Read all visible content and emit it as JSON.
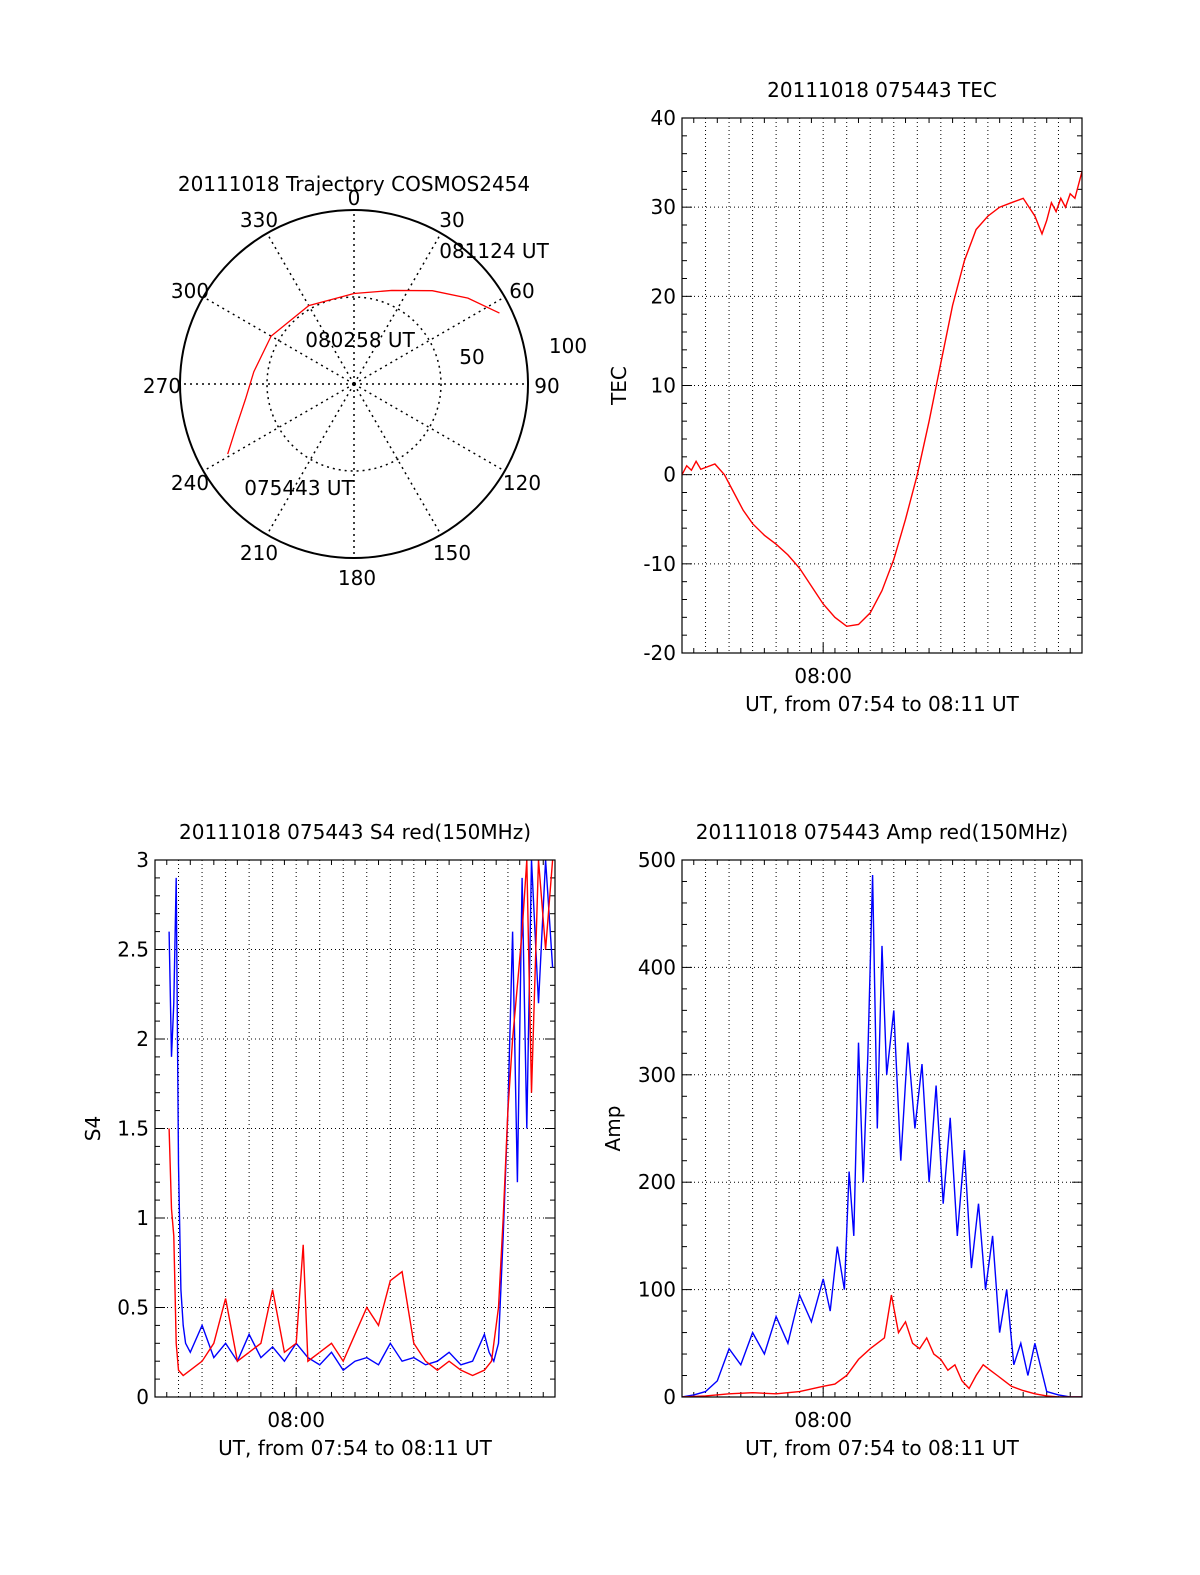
{
  "chart_data": [
    {
      "type": "polar",
      "title": "20111018 Trajectory COSMOS2454",
      "azimuth_labels": [
        "0",
        "30",
        "60",
        "90",
        "120",
        "150",
        "180",
        "210",
        "240",
        "270",
        "300",
        "330"
      ],
      "azimuths": [
        0,
        30,
        60,
        90,
        120,
        150,
        180,
        210,
        240,
        270,
        300,
        330
      ],
      "elevation_rings": [
        {
          "value": 50,
          "label": "50"
        },
        {
          "value": 100,
          "label": "100"
        }
      ],
      "time_labels": [
        {
          "text": "081124 UT",
          "az": 64,
          "r": 0.93
        },
        {
          "text": "080258 UT",
          "az": 0,
          "r": 0.0
        },
        {
          "text": "075443 UT",
          "az": 236,
          "r": 0.83
        }
      ],
      "trajectory": [
        [
          64,
          0.93
        ],
        [
          53,
          0.82
        ],
        [
          40,
          0.7
        ],
        [
          22,
          0.58
        ],
        [
          0,
          0.52
        ],
        [
          330,
          0.52
        ],
        [
          300,
          0.55
        ],
        [
          277,
          0.58
        ],
        [
          262,
          0.63
        ],
        [
          250,
          0.72
        ],
        [
          241,
          0.83
        ]
      ],
      "line_color": "#ff0000"
    },
    {
      "type": "line",
      "title": "20111018 075443 TEC",
      "ylabel": "TEC",
      "xlabel": "UT, from 07:54 to 08:11 UT",
      "xtick_label": "08:00",
      "xrange": [
        0,
        17
      ],
      "xtick_at": 6,
      "yrange": [
        -20,
        40
      ],
      "yticks": [
        -20,
        -10,
        0,
        10,
        20,
        30,
        40
      ],
      "series": [
        {
          "color": "#ff0000",
          "x": [
            0.0,
            0.2,
            0.4,
            0.6,
            0.8,
            1.0,
            1.4,
            1.8,
            2.2,
            2.6,
            3.0,
            3.5,
            4.0,
            4.5,
            5.0,
            5.5,
            6.0,
            6.5,
            7.0,
            7.5,
            8.0,
            8.5,
            9.0,
            9.5,
            10.0,
            10.5,
            11.0,
            11.5,
            12.0,
            12.5,
            13.0,
            13.5,
            14.0,
            14.5,
            15.0,
            15.3,
            15.5,
            15.7,
            15.9,
            16.1,
            16.3,
            16.5,
            16.7,
            17.0
          ],
          "y": [
            0.0,
            1.0,
            0.5,
            1.5,
            0.6,
            0.8,
            1.2,
            0.0,
            -2.0,
            -4.0,
            -5.5,
            -6.8,
            -7.8,
            -9.0,
            -10.5,
            -12.5,
            -14.5,
            -16.0,
            -17.0,
            -16.8,
            -15.5,
            -13.0,
            -9.5,
            -5.0,
            0.0,
            6.0,
            12.5,
            19.0,
            24.0,
            27.5,
            29.0,
            30.0,
            30.5,
            31.0,
            29.0,
            27.0,
            28.5,
            30.5,
            29.5,
            31.0,
            30.0,
            31.5,
            31.0,
            34.0
          ]
        }
      ]
    },
    {
      "type": "line",
      "title": "20111018 075443 S4 red(150MHz)",
      "ylabel": "S4",
      "xlabel": "UT, from 07:54 to 08:11 UT",
      "xtick_label": "08:00",
      "xrange": [
        0,
        17
      ],
      "xtick_at": 6,
      "yrange": [
        0,
        3
      ],
      "yticks": [
        0,
        0.5,
        1,
        1.5,
        2,
        2.5,
        3
      ],
      "series": [
        {
          "color": "#0000ff",
          "x": [
            0.6,
            0.7,
            0.8,
            0.9,
            1.0,
            1.1,
            1.2,
            1.3,
            1.5,
            2.0,
            2.5,
            3.0,
            3.5,
            4.0,
            4.5,
            5.0,
            5.5,
            6.0,
            6.5,
            7.0,
            7.5,
            8.0,
            8.5,
            9.0,
            9.5,
            10.0,
            10.5,
            11.0,
            11.5,
            12.0,
            12.5,
            13.0,
            13.5,
            14.0,
            14.2,
            14.4,
            14.6,
            14.8,
            15.0,
            15.2,
            15.4,
            15.6,
            15.8,
            16.0,
            16.3,
            16.6,
            16.9
          ],
          "y": [
            2.6,
            1.9,
            2.2,
            2.9,
            1.3,
            0.6,
            0.4,
            0.3,
            0.25,
            0.4,
            0.22,
            0.3,
            0.2,
            0.35,
            0.22,
            0.28,
            0.2,
            0.3,
            0.22,
            0.18,
            0.25,
            0.15,
            0.2,
            0.22,
            0.18,
            0.3,
            0.2,
            0.22,
            0.18,
            0.2,
            0.25,
            0.18,
            0.2,
            0.35,
            0.25,
            0.2,
            0.3,
            0.9,
            1.6,
            2.6,
            1.2,
            2.9,
            1.5,
            3.0,
            2.2,
            3.0,
            2.4
          ]
        },
        {
          "color": "#ff0000",
          "x": [
            0.6,
            0.7,
            0.8,
            0.9,
            1.0,
            1.2,
            1.5,
            2.0,
            2.5,
            3.0,
            3.5,
            4.0,
            4.5,
            5.0,
            5.5,
            6.0,
            6.3,
            6.5,
            7.0,
            7.5,
            8.0,
            8.5,
            9.0,
            9.5,
            10.0,
            10.5,
            11.0,
            11.5,
            12.0,
            12.5,
            13.0,
            13.5,
            14.0,
            14.3,
            14.6,
            14.8,
            15.0,
            15.2,
            15.4,
            15.6,
            15.8,
            16.0,
            16.3,
            16.6,
            16.9
          ],
          "y": [
            1.5,
            1.05,
            0.9,
            0.3,
            0.15,
            0.12,
            0.15,
            0.2,
            0.3,
            0.55,
            0.2,
            0.25,
            0.3,
            0.6,
            0.25,
            0.3,
            0.85,
            0.2,
            0.25,
            0.3,
            0.2,
            0.35,
            0.5,
            0.4,
            0.65,
            0.7,
            0.3,
            0.2,
            0.15,
            0.2,
            0.15,
            0.12,
            0.15,
            0.2,
            0.5,
            1.0,
            1.6,
            2.0,
            2.3,
            2.6,
            3.0,
            1.7,
            3.0,
            2.5,
            3.0
          ]
        }
      ]
    },
    {
      "type": "line",
      "title": "20111018 075443 Amp red(150MHz)",
      "ylabel": "Amp",
      "xlabel": "UT, from 07:54 to 08:11 UT",
      "xtick_label": "08:00",
      "xrange": [
        0,
        17
      ],
      "xtick_at": 6,
      "yrange": [
        0,
        500
      ],
      "yticks": [
        0,
        100,
        200,
        300,
        400,
        500
      ],
      "series": [
        {
          "color": "#0000ff",
          "x": [
            0.0,
            0.5,
            1.0,
            1.5,
            2.0,
            2.5,
            3.0,
            3.5,
            4.0,
            4.5,
            5.0,
            5.5,
            6.0,
            6.3,
            6.6,
            6.9,
            7.1,
            7.3,
            7.5,
            7.7,
            7.9,
            8.1,
            8.3,
            8.5,
            8.7,
            9.0,
            9.3,
            9.6,
            9.9,
            10.2,
            10.5,
            10.8,
            11.1,
            11.4,
            11.7,
            12.0,
            12.3,
            12.6,
            12.9,
            13.2,
            13.5,
            13.8,
            14.1,
            14.4,
            14.7,
            15.0,
            15.5,
            16.0,
            16.5,
            17.0
          ],
          "y": [
            0,
            2,
            5,
            15,
            45,
            30,
            60,
            40,
            75,
            50,
            95,
            70,
            110,
            80,
            140,
            100,
            210,
            150,
            330,
            200,
            320,
            486,
            250,
            420,
            300,
            360,
            220,
            330,
            250,
            310,
            200,
            290,
            180,
            260,
            150,
            230,
            120,
            180,
            100,
            150,
            60,
            100,
            30,
            50,
            20,
            50,
            5,
            2,
            0,
            0
          ]
        },
        {
          "color": "#ff0000",
          "x": [
            0.0,
            1.0,
            2.0,
            3.0,
            4.0,
            5.0,
            6.0,
            6.5,
            7.0,
            7.5,
            8.0,
            8.3,
            8.6,
            8.9,
            9.2,
            9.5,
            9.8,
            10.1,
            10.4,
            10.7,
            11.0,
            11.3,
            11.6,
            11.9,
            12.2,
            12.5,
            12.8,
            13.1,
            13.4,
            13.7,
            14.0,
            14.5,
            15.0,
            15.5,
            16.0,
            17.0
          ],
          "y": [
            0,
            1,
            3,
            4,
            3,
            5,
            10,
            12,
            20,
            35,
            45,
            50,
            55,
            95,
            60,
            70,
            50,
            45,
            55,
            40,
            35,
            25,
            30,
            15,
            8,
            20,
            30,
            25,
            20,
            15,
            10,
            6,
            3,
            1,
            0,
            0
          ]
        }
      ]
    }
  ]
}
